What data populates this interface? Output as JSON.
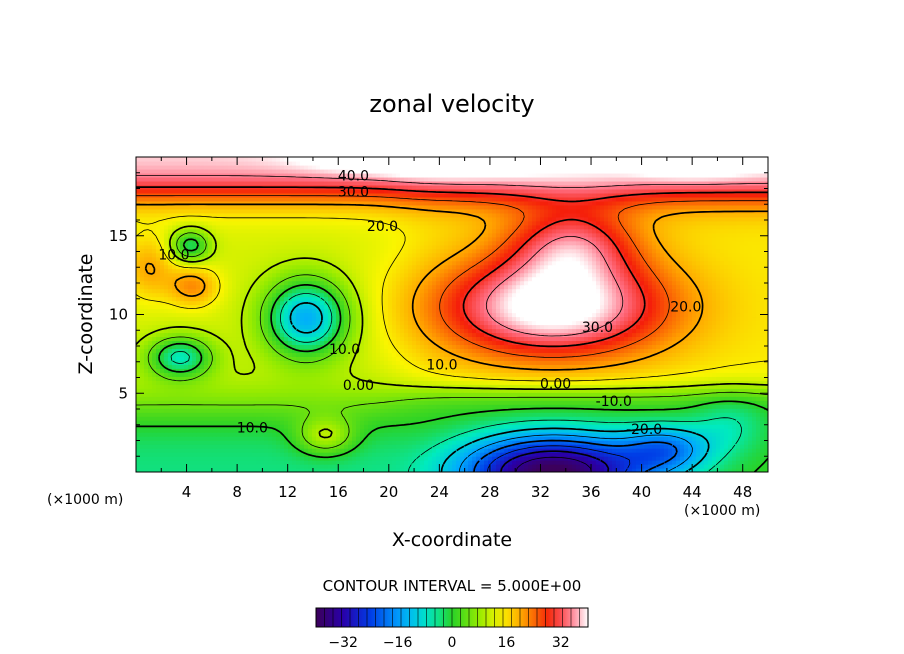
{
  "chart_data": {
    "type": "heatmap",
    "subtype": "filled-contour",
    "title": "zonal velocity",
    "xlabel": "X-coordinate",
    "ylabel": "Z-coordinate",
    "x_unit_left": "(×1000 m)",
    "x_unit_right": "(×1000 m)",
    "xlim": [
      0,
      50
    ],
    "ylim": [
      0,
      20
    ],
    "xticks": [
      4,
      8,
      12,
      16,
      20,
      24,
      28,
      32,
      36,
      40,
      44,
      48
    ],
    "xtick_labels": [
      "4",
      "8",
      "12",
      "16",
      "20",
      "24",
      "28",
      "32",
      "36",
      "40",
      "44",
      "48"
    ],
    "yticks": [
      5,
      10,
      15
    ],
    "ytick_labels": [
      "5",
      "10",
      "15"
    ],
    "contour_interval_text": "CONTOUR INTERVAL = 5.000E+00",
    "contour_interval": 5.0,
    "value_range": [
      -40,
      40
    ],
    "colorbar": {
      "ticks": [
        -32,
        -16,
        0,
        16,
        32
      ],
      "tick_labels": [
        "−32",
        "−16",
        "0",
        "16",
        "32"
      ]
    },
    "contour_labels": [
      {
        "text": "40.0",
        "x": 17.2,
        "z": 18.5
      },
      {
        "text": "30.0",
        "x": 17.2,
        "z": 17.5
      },
      {
        "text": "20.0",
        "x": 19.5,
        "z": 15.3
      },
      {
        "text": "10.0",
        "x": 3.0,
        "z": 13.5
      },
      {
        "text": "30.0",
        "x": 36.5,
        "z": 8.9
      },
      {
        "text": "20.0",
        "x": 43.5,
        "z": 10.2
      },
      {
        "text": "10.0",
        "x": 16.5,
        "z": 7.5
      },
      {
        "text": "10.0",
        "x": 24.2,
        "z": 6.5
      },
      {
        "text": "0.00",
        "x": 17.6,
        "z": 5.2
      },
      {
        "text": "0.00",
        "x": 33.2,
        "z": 5.3
      },
      {
        "text": "-10.0",
        "x": 37.8,
        "z": 4.2
      },
      {
        "text": "-20.0",
        "x": 40.2,
        "z": 2.4
      },
      {
        "text": "10.0",
        "x": 9.2,
        "z": 2.5
      }
    ],
    "features": [
      {
        "kind": "max",
        "x": 33,
        "z": 11.5,
        "value": 40
      },
      {
        "kind": "max",
        "x": 34.5,
        "z": 14.5,
        "value": 40
      },
      {
        "kind": "max",
        "x": 23,
        "z": 18.6,
        "value": 45
      },
      {
        "kind": "max",
        "x": 44,
        "z": 18.4,
        "value": 45
      },
      {
        "kind": "min",
        "x": 33,
        "z": 0.2,
        "value": -40
      },
      {
        "kind": "min",
        "x": 13.5,
        "z": 9.8,
        "value": -17
      },
      {
        "kind": "min",
        "x": 3.5,
        "z": 7.3,
        "value": -12
      },
      {
        "kind": "max",
        "x": 15,
        "z": 2.3,
        "value": 23
      },
      {
        "kind": "max",
        "x": 4.5,
        "z": 11.8,
        "value": 22
      },
      {
        "kind": "min",
        "x": 4.3,
        "z": 14.4,
        "value": -2
      }
    ]
  }
}
